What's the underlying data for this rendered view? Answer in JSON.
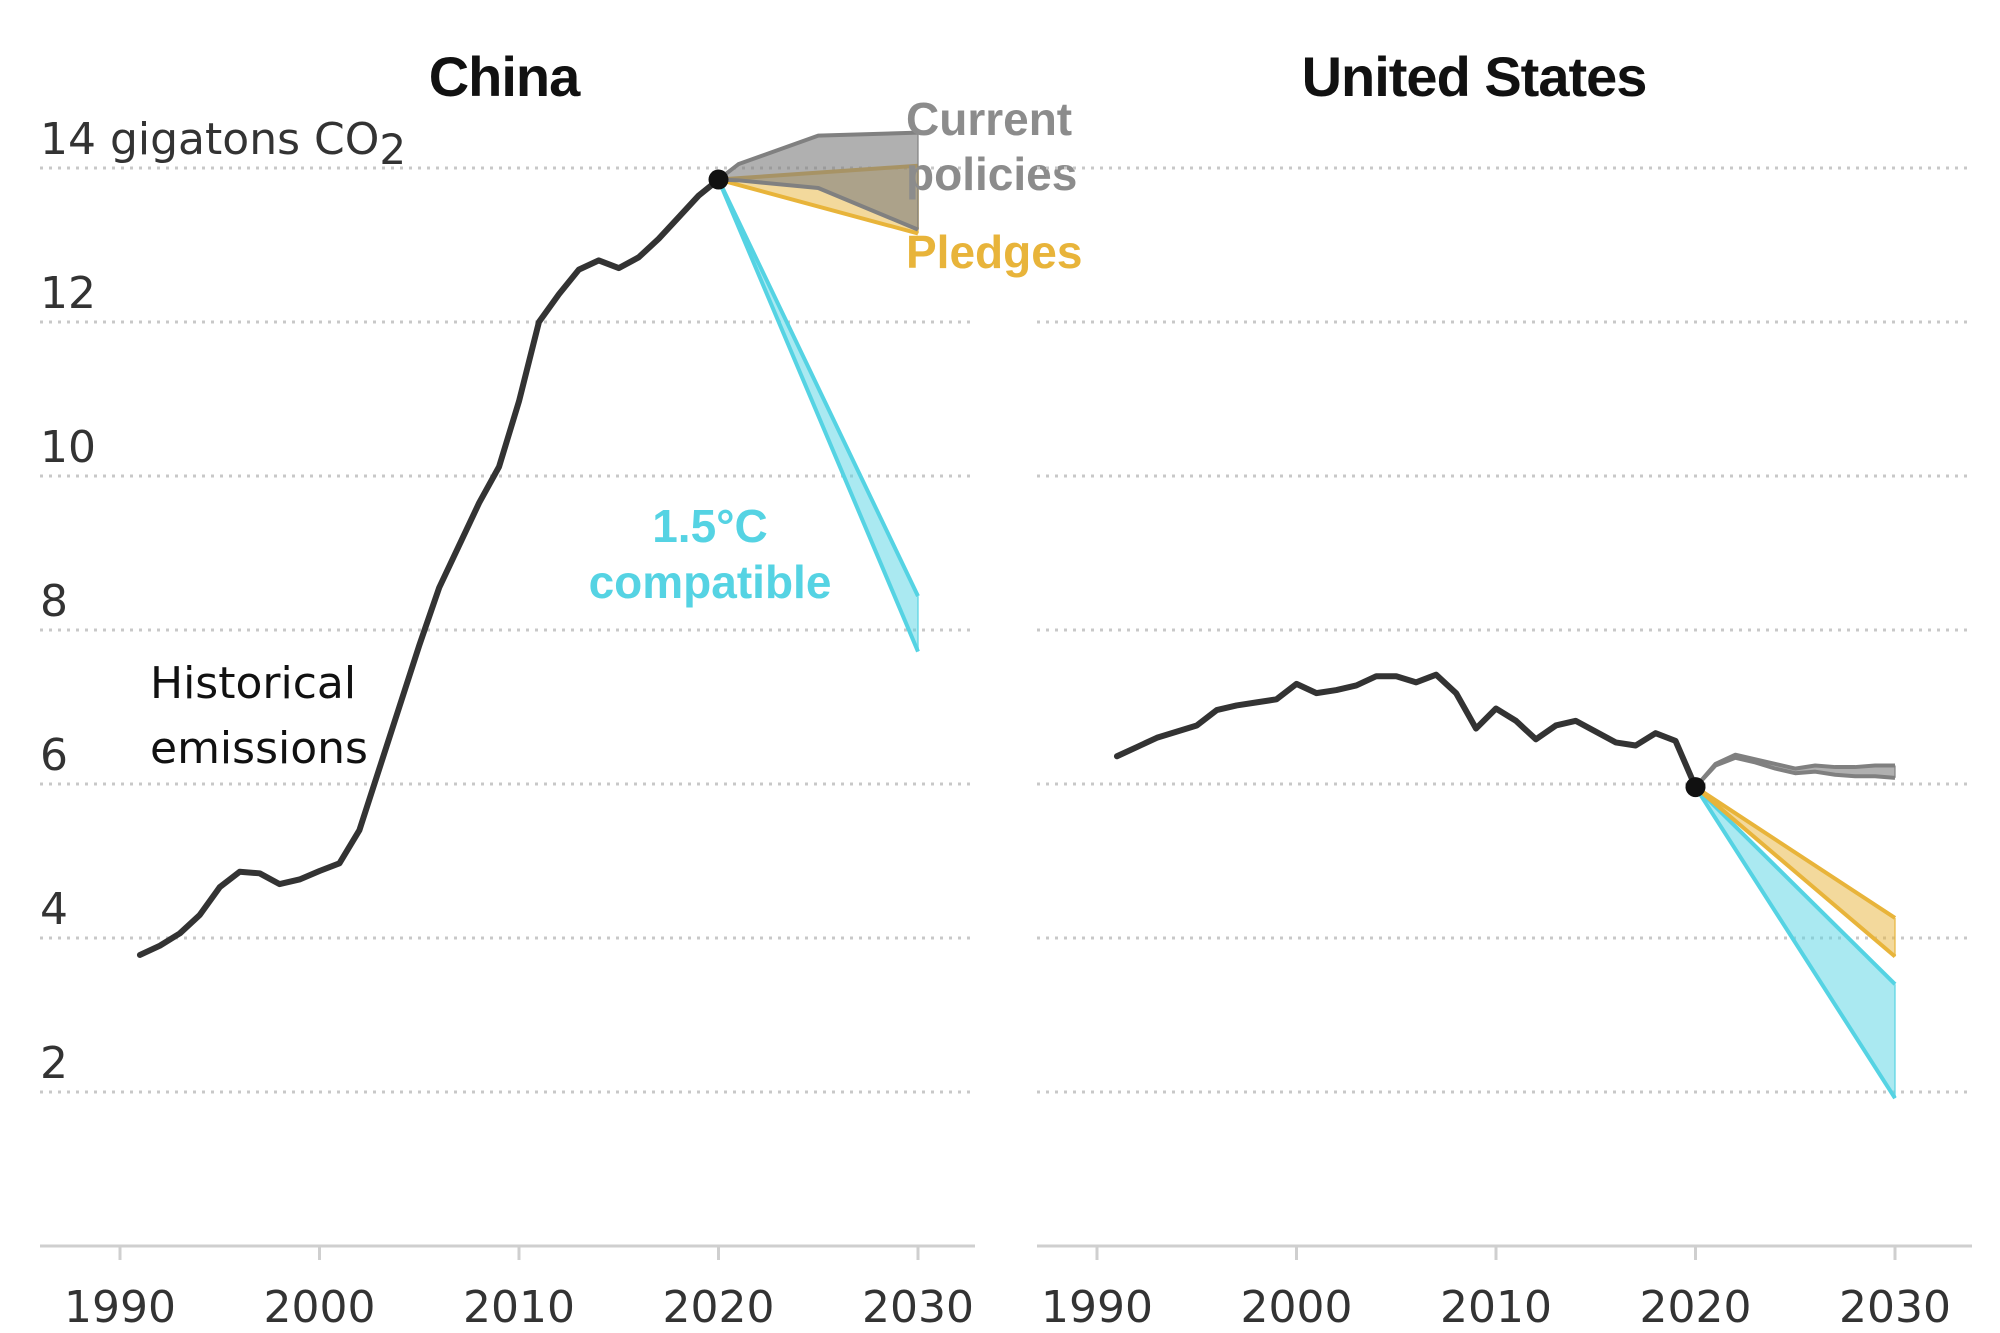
{
  "chart_data": [
    {
      "type": "line",
      "title": "China",
      "y_unit_label": "14 gigatons CO",
      "y_unit_sub": "2",
      "x_ticks": [
        1990,
        2000,
        2010,
        2020,
        2030
      ],
      "y_ticks": [
        2,
        4,
        6,
        8,
        10,
        12,
        14
      ],
      "xlim": [
        1987,
        2034
      ],
      "ylim": [
        0,
        14.4
      ],
      "grid": true,
      "series": [
        {
          "name": "Historical emissions",
          "label_lines": [
            "Historical",
            "emissions"
          ],
          "color": "#333333",
          "x": [
            1991,
            1992,
            1993,
            1994,
            1995,
            1996,
            1997,
            1998,
            1999,
            2000,
            2001,
            2002,
            2003,
            2004,
            2005,
            2006,
            2007,
            2008,
            2009,
            2010,
            2011,
            2012,
            2013,
            2014,
            2015,
            2016,
            2017,
            2018,
            2019,
            2020
          ],
          "y": [
            3.78,
            3.9,
            4.06,
            4.3,
            4.66,
            4.86,
            4.84,
            4.7,
            4.76,
            4.87,
            4.97,
            5.4,
            6.2,
            7.0,
            7.8,
            8.55,
            9.1,
            9.65,
            10.12,
            10.97,
            12.0,
            12.36,
            12.68,
            12.8,
            12.7,
            12.84,
            13.08,
            13.36,
            13.64,
            13.85
          ]
        },
        {
          "name": "Current policies",
          "label_lines": [
            "Current",
            "policies"
          ],
          "color": "#808080",
          "band": {
            "x": [
              2020,
              2021,
              2025,
              2030
            ],
            "upper": [
              13.85,
              14.05,
              14.42,
              14.46
            ],
            "lower": [
              13.85,
              13.84,
              13.74,
              13.2
            ]
          }
        },
        {
          "name": "Pledges",
          "label_lines": [
            "Pledges"
          ],
          "color": "#e8b43a",
          "band": {
            "x": [
              2020,
              2030
            ],
            "upper": [
              13.85,
              14.03
            ],
            "lower": [
              13.85,
              13.15
            ]
          }
        },
        {
          "name": "1.5°C compatible",
          "label_lines": [
            "1.5°C",
            "compatible"
          ],
          "color": "#55d3e3",
          "band": {
            "x": [
              2020,
              2030
            ],
            "upper": [
              13.85,
              8.44
            ],
            "lower": [
              13.85,
              7.72
            ]
          }
        }
      ]
    },
    {
      "type": "line",
      "title": "United States",
      "x_ticks": [
        1990,
        2000,
        2010,
        2020,
        2030
      ],
      "y_ticks": [
        2,
        4,
        6,
        8,
        10,
        12,
        14
      ],
      "xlim": [
        1987,
        2034
      ],
      "ylim": [
        0,
        14.4
      ],
      "grid": true,
      "series": [
        {
          "name": "Historical emissions",
          "color": "#333333",
          "x": [
            1991,
            1992,
            1993,
            1994,
            1995,
            1996,
            1997,
            1998,
            1999,
            2000,
            2001,
            2002,
            2003,
            2004,
            2005,
            2006,
            2007,
            2008,
            2009,
            2010,
            2011,
            2012,
            2013,
            2014,
            2015,
            2016,
            2017,
            2018,
            2019,
            2020
          ],
          "y": [
            6.36,
            6.48,
            6.6,
            6.68,
            6.76,
            6.96,
            7.02,
            7.06,
            7.1,
            7.3,
            7.18,
            7.22,
            7.28,
            7.4,
            7.4,
            7.32,
            7.42,
            7.18,
            6.72,
            6.98,
            6.82,
            6.58,
            6.76,
            6.82,
            6.68,
            6.54,
            6.5,
            6.66,
            6.56,
            5.96
          ]
        },
        {
          "name": "Current policies",
          "color": "#808080",
          "band": {
            "x": [
              2020,
              2021,
              2022,
              2023,
              2024,
              2025,
              2026,
              2027,
              2028,
              2029,
              2030
            ],
            "upper": [
              5.96,
              6.26,
              6.38,
              6.32,
              6.26,
              6.2,
              6.24,
              6.22,
              6.22,
              6.24,
              6.24
            ],
            "lower": [
              5.96,
              6.24,
              6.34,
              6.28,
              6.2,
              6.14,
              6.16,
              6.12,
              6.1,
              6.1,
              6.08
            ]
          }
        },
        {
          "name": "Pledges",
          "color": "#e8b43a",
          "band": {
            "x": [
              2020,
              2030
            ],
            "upper": [
              5.96,
              4.26
            ],
            "lower": [
              5.96,
              3.76
            ]
          }
        },
        {
          "name": "1.5°C compatible",
          "color": "#55d3e3",
          "band": {
            "x": [
              2020,
              2030
            ],
            "upper": [
              5.96,
              3.4
            ],
            "lower": [
              5.96,
              1.92
            ]
          }
        }
      ]
    }
  ]
}
